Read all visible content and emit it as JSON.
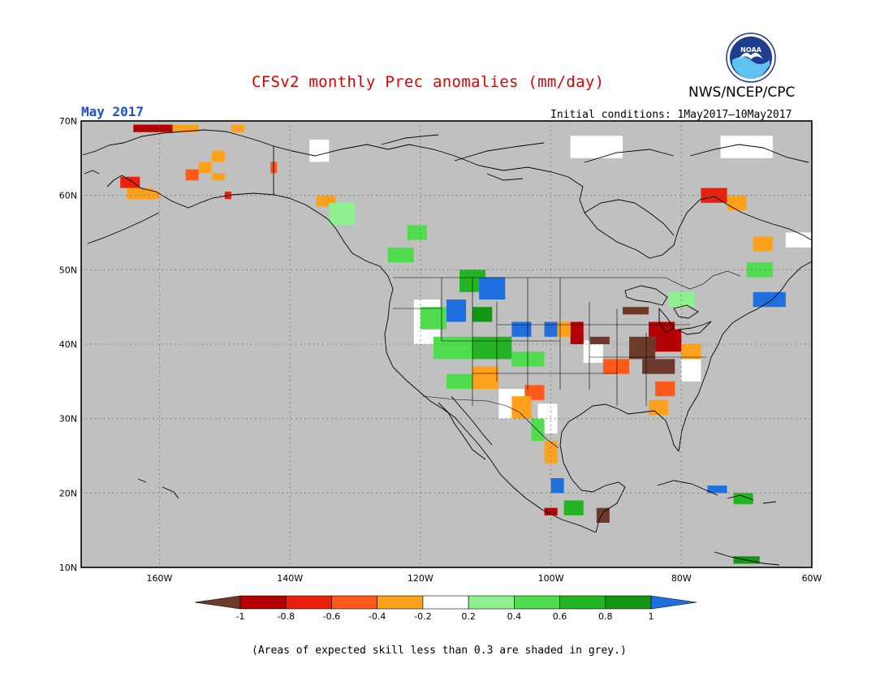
{
  "header": {
    "title": "CFSv2 monthly Prec anomalies (mm/day)",
    "organization": "NWS/NCEP/CPC",
    "logo_text": "NOAA",
    "valid_month": "May 2017",
    "initial_conditions": "Initial conditions: 1May2017–10May2017"
  },
  "map": {
    "lon_range": [
      -172,
      -60
    ],
    "lat_range": [
      10,
      70
    ],
    "background_color": "#c0c0c0",
    "grid": "dotted",
    "lon_ticks": [
      {
        "value": -160,
        "label": "160W"
      },
      {
        "value": -140,
        "label": "140W"
      },
      {
        "value": -120,
        "label": "120W"
      },
      {
        "value": -100,
        "label": "100W"
      },
      {
        "value": -80,
        "label": "80W"
      },
      {
        "value": -60,
        "label": "60W"
      }
    ],
    "lat_ticks": [
      {
        "value": 70,
        "label": "70N"
      },
      {
        "value": 60,
        "label": "60N"
      },
      {
        "value": 50,
        "label": "50N"
      },
      {
        "value": 40,
        "label": "40N"
      },
      {
        "value": 30,
        "label": "30N"
      },
      {
        "value": 20,
        "label": "20N"
      },
      {
        "value": 10,
        "label": "10N"
      }
    ],
    "anomaly_cells": [
      {
        "lon": -164,
        "lat": 68.5,
        "w": 6,
        "h": 1,
        "value": -0.7
      },
      {
        "lon": -158,
        "lat": 68.5,
        "w": 4,
        "h": 1,
        "value": -0.3
      },
      {
        "lon": -149,
        "lat": 68.5,
        "w": 2,
        "h": 1,
        "value": -0.3
      },
      {
        "lon": -152,
        "lat": 64.5,
        "w": 2,
        "h": 1.5,
        "value": -0.3
      },
      {
        "lon": -154,
        "lat": 63,
        "w": 2,
        "h": 1.5,
        "value": -0.3
      },
      {
        "lon": -156,
        "lat": 62,
        "w": 2,
        "h": 1.5,
        "value": -0.5
      },
      {
        "lon": -152,
        "lat": 62,
        "w": 2,
        "h": 1,
        "value": -0.3
      },
      {
        "lon": -143,
        "lat": 63,
        "w": 1,
        "h": 1.5,
        "value": -0.5
      },
      {
        "lon": -166,
        "lat": 61,
        "w": 3,
        "h": 1.5,
        "value": -0.6
      },
      {
        "lon": -165,
        "lat": 59.5,
        "w": 4,
        "h": 1.5,
        "value": -0.3
      },
      {
        "lon": -162,
        "lat": 59.5,
        "w": 2,
        "h": 1,
        "value": -0.2
      },
      {
        "lon": -150,
        "lat": 59.5,
        "w": 1,
        "h": 1,
        "value": -0.6
      },
      {
        "lon": -136,
        "lat": 58.5,
        "w": 3,
        "h": 1.5,
        "value": -0.3
      },
      {
        "lon": -134,
        "lat": 56,
        "w": 4,
        "h": 3,
        "value": 0.3
      },
      {
        "lon": -122,
        "lat": 54,
        "w": 3,
        "h": 2,
        "value": 0.5
      },
      {
        "lon": -125,
        "lat": 51,
        "w": 4,
        "h": 2,
        "value": 0.4
      },
      {
        "lon": -114,
        "lat": 47,
        "w": 4,
        "h": 3,
        "value": 0.6
      },
      {
        "lon": -111,
        "lat": 46,
        "w": 4,
        "h": 3,
        "value": 1.0
      },
      {
        "lon": -116,
        "lat": 43,
        "w": 3,
        "h": 3,
        "value": 1.0
      },
      {
        "lon": -112,
        "lat": 43,
        "w": 3,
        "h": 2,
        "value": 0.8
      },
      {
        "lon": -106,
        "lat": 41,
        "w": 3,
        "h": 2,
        "value": 1.0
      },
      {
        "lon": -101,
        "lat": 41,
        "w": 2,
        "h": 2,
        "value": 1.0
      },
      {
        "lon": -120,
        "lat": 42,
        "w": 4,
        "h": 3,
        "value": 0.4
      },
      {
        "lon": -118,
        "lat": 38,
        "w": 6,
        "h": 3,
        "value": 0.5
      },
      {
        "lon": -112,
        "lat": 38,
        "w": 6,
        "h": 3,
        "value": 0.6
      },
      {
        "lon": -106,
        "lat": 37,
        "w": 5,
        "h": 2,
        "value": 0.4
      },
      {
        "lon": -116,
        "lat": 34,
        "w": 5,
        "h": 2,
        "value": 0.5
      },
      {
        "lon": -112,
        "lat": 34,
        "w": 4,
        "h": 3,
        "value": -0.2
      },
      {
        "lon": -104,
        "lat": 32.5,
        "w": 3,
        "h": 2,
        "value": -0.5
      },
      {
        "lon": -106,
        "lat": 30,
        "w": 3,
        "h": 3,
        "value": -0.3
      },
      {
        "lon": -103,
        "lat": 27,
        "w": 2,
        "h": 3,
        "value": 0.5
      },
      {
        "lon": -101,
        "lat": 24,
        "w": 2,
        "h": 3,
        "value": -0.3
      },
      {
        "lon": -100,
        "lat": 20,
        "w": 2,
        "h": 2,
        "value": 1.0
      },
      {
        "lon": -98,
        "lat": 17,
        "w": 3,
        "h": 2,
        "value": 0.7
      },
      {
        "lon": -101,
        "lat": 17,
        "w": 2,
        "h": 1,
        "value": -0.7
      },
      {
        "lon": -93,
        "lat": 16,
        "w": 2,
        "h": 2,
        "value": -1.0
      },
      {
        "lon": -97,
        "lat": 40,
        "w": 2,
        "h": 3,
        "value": -0.8
      },
      {
        "lon": -94,
        "lat": 40,
        "w": 3,
        "h": 1,
        "value": -1.0
      },
      {
        "lon": -99,
        "lat": 41,
        "w": 2,
        "h": 2,
        "value": -0.4
      },
      {
        "lon": -92,
        "lat": 36,
        "w": 4,
        "h": 2,
        "value": -0.5
      },
      {
        "lon": -88,
        "lat": 38,
        "w": 4,
        "h": 3,
        "value": -1.0
      },
      {
        "lon": -84,
        "lat": 39,
        "w": 4,
        "h": 3,
        "value": -0.8
      },
      {
        "lon": -86,
        "lat": 36,
        "w": 5,
        "h": 2,
        "value": -1.0
      },
      {
        "lon": -80,
        "lat": 38,
        "w": 3,
        "h": 2,
        "value": -0.4
      },
      {
        "lon": -85,
        "lat": 41,
        "w": 4,
        "h": 2,
        "value": -0.8
      },
      {
        "lon": -89,
        "lat": 44,
        "w": 4,
        "h": 1,
        "value": -1.0
      },
      {
        "lon": -84,
        "lat": 33,
        "w": 3,
        "h": 2,
        "value": -0.5
      },
      {
        "lon": -85,
        "lat": 30.5,
        "w": 3,
        "h": 2,
        "value": -0.3
      },
      {
        "lon": -82,
        "lat": 45,
        "w": 4,
        "h": 2,
        "value": 0.3
      },
      {
        "lon": -77,
        "lat": 59,
        "w": 4,
        "h": 2,
        "value": -0.6
      },
      {
        "lon": -73,
        "lat": 58,
        "w": 3,
        "h": 2,
        "value": -0.3
      },
      {
        "lon": -69,
        "lat": 52.5,
        "w": 3,
        "h": 2,
        "value": -0.4
      },
      {
        "lon": -70,
        "lat": 49,
        "w": 4,
        "h": 2,
        "value": 0.5
      },
      {
        "lon": -69,
        "lat": 45,
        "w": 5,
        "h": 2,
        "value": 1.0
      },
      {
        "lon": -72,
        "lat": 18.5,
        "w": 3,
        "h": 1.5,
        "value": 0.6
      },
      {
        "lon": -76,
        "lat": 20,
        "w": 3,
        "h": 1,
        "value": 1.0
      },
      {
        "lon": -72,
        "lat": 10.5,
        "w": 4,
        "h": 1,
        "value": 0.8
      }
    ],
    "no_skill_white_cells": [
      {
        "lon": -137,
        "lat": 64.5,
        "w": 3,
        "h": 3
      },
      {
        "lon": -97,
        "lat": 65,
        "w": 8,
        "h": 3
      },
      {
        "lon": -74,
        "lat": 65,
        "w": 8,
        "h": 3
      },
      {
        "lon": -121,
        "lat": 40,
        "w": 4,
        "h": 6
      },
      {
        "lon": -108,
        "lat": 30,
        "w": 4,
        "h": 4
      },
      {
        "lon": -102,
        "lat": 28,
        "w": 3,
        "h": 4
      },
      {
        "lon": -95,
        "lat": 37.5,
        "w": 3,
        "h": 3
      },
      {
        "lon": -80,
        "lat": 35,
        "w": 3,
        "h": 3
      },
      {
        "lon": -64,
        "lat": 53,
        "w": 4,
        "h": 2
      }
    ]
  },
  "colorbar": {
    "tick_labels": [
      "-1",
      "-0.8",
      "-0.6",
      "-0.4",
      "-0.2",
      "0.2",
      "0.4",
      "0.6",
      "0.8",
      "1"
    ],
    "colors": [
      "#6b3a2a",
      "#b30000",
      "#e8200c",
      "#ff5a1a",
      "#ffa11a",
      "#ffffff",
      "#8ef08e",
      "#4fdc4f",
      "#22b422",
      "#139613",
      "#1e6fe0"
    ]
  },
  "footnote": "(Areas of expected skill less than 0.3 are shaded in grey.)"
}
